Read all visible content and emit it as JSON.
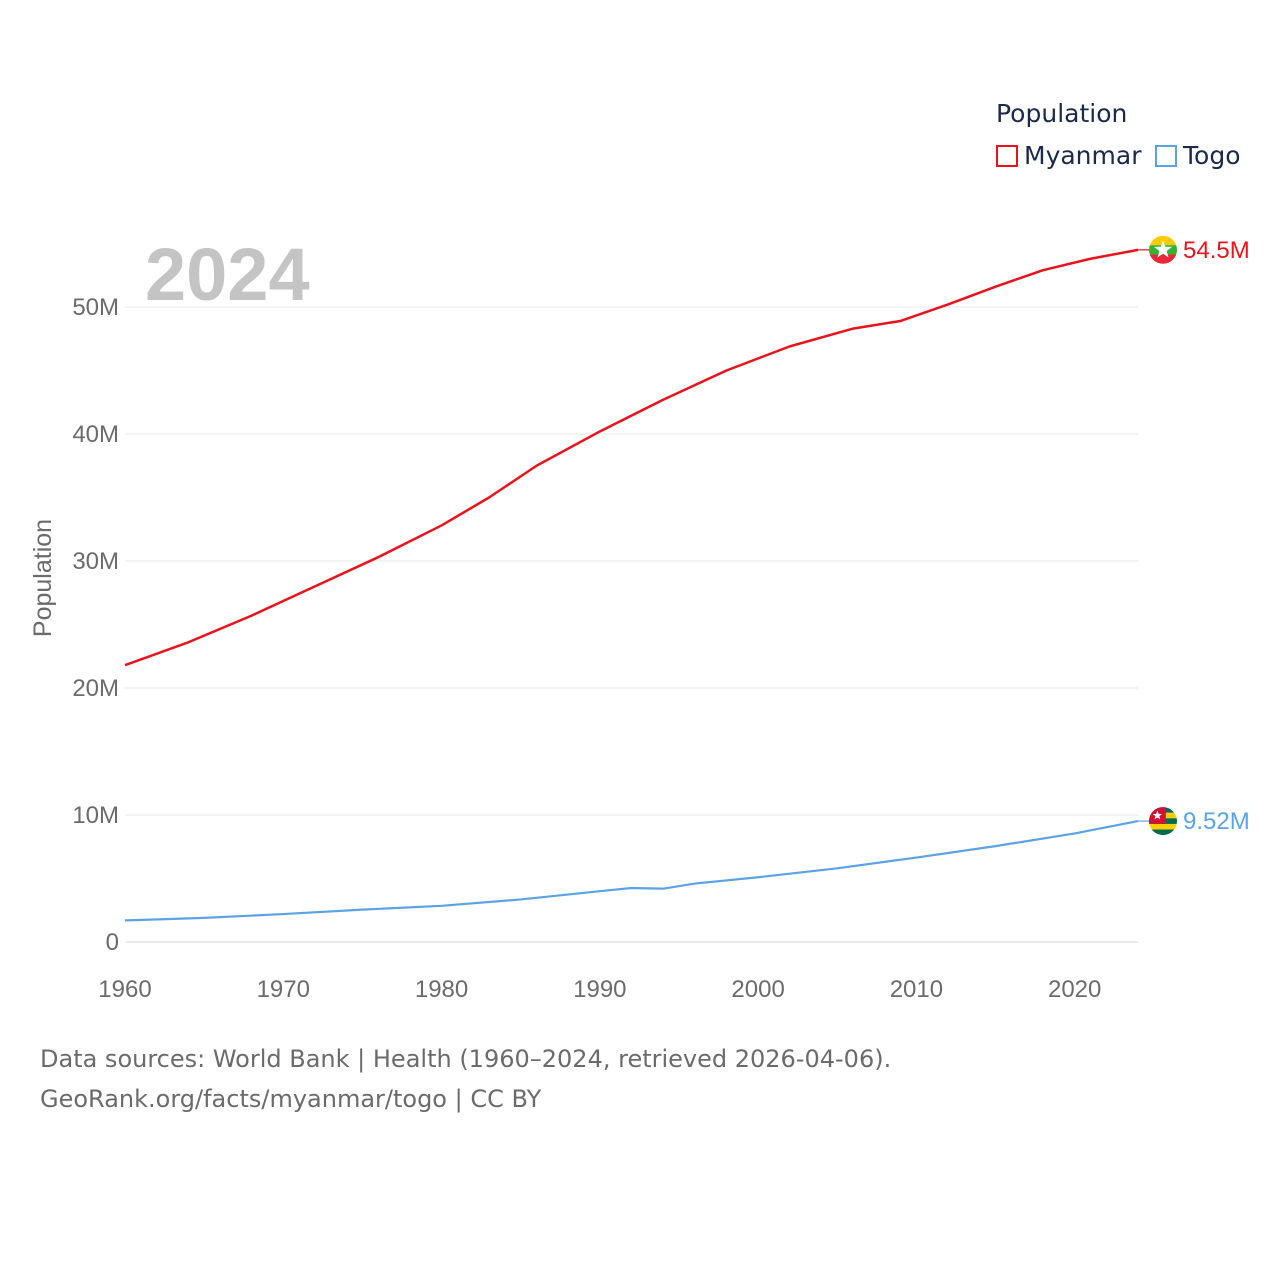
{
  "legend": {
    "title": "Population"
  },
  "footer": {
    "line1": "Data sources: World Bank | Health (1960–2024, retrieved 2026-04-06).",
    "line2": "GeoRank.org/facts/myanmar/togo | CC BY"
  },
  "chart_data": {
    "type": "line",
    "title": "",
    "year_label": "2024",
    "xlabel": "",
    "ylabel": "Population",
    "xlim": [
      1960,
      2024
    ],
    "ylim": [
      0,
      57500000
    ],
    "x_ticks": [
      1960,
      1970,
      1980,
      1990,
      2000,
      2010,
      2020
    ],
    "y_ticks": [
      {
        "value": 0,
        "label": "0"
      },
      {
        "value": 10000000,
        "label": "10M"
      },
      {
        "value": 20000000,
        "label": "20M"
      },
      {
        "value": 30000000,
        "label": "30M"
      },
      {
        "value": 40000000,
        "label": "40M"
      },
      {
        "value": 50000000,
        "label": "50M"
      }
    ],
    "grid": true,
    "legend_position": "top-right",
    "series": [
      {
        "name": "Myanmar",
        "color": "#e8141c",
        "end_label": "54.5M",
        "flag": "myanmar-flag",
        "x": [
          1960,
          1964,
          1968,
          1972,
          1976,
          1980,
          1983,
          1986,
          1990,
          1994,
          1998,
          2002,
          2006,
          2009,
          2012,
          2015,
          2018,
          2021,
          2024
        ],
        "y": [
          21800000,
          23600000,
          25700000,
          28000000,
          30300000,
          32800000,
          35000000,
          37500000,
          40200000,
          42700000,
          45000000,
          46900000,
          48300000,
          48900000,
          50200000,
          51600000,
          52900000,
          53800000,
          54500000
        ]
      },
      {
        "name": "Togo",
        "color": "#5ba3e6",
        "end_label": "9.52M",
        "flag": "togo-flag",
        "x": [
          1960,
          1965,
          1970,
          1975,
          1980,
          1985,
          1990,
          1992,
          1994,
          1996,
          2000,
          2005,
          2010,
          2015,
          2020,
          2024
        ],
        "y": [
          1700000,
          1900000,
          2200000,
          2550000,
          2850000,
          3350000,
          4000000,
          4250000,
          4200000,
          4600000,
          5100000,
          5800000,
          6650000,
          7550000,
          8550000,
          9520000
        ]
      }
    ]
  }
}
